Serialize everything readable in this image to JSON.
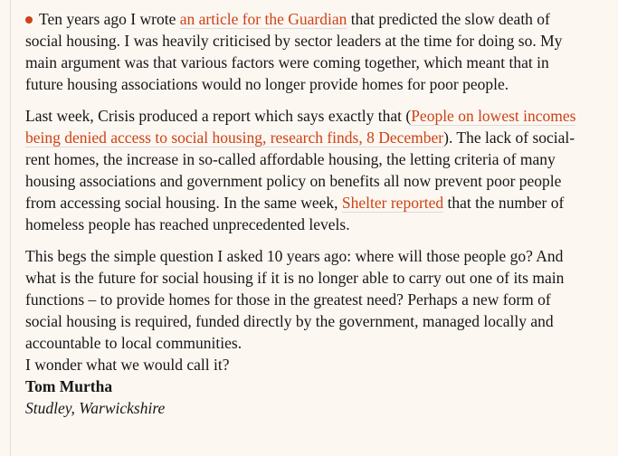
{
  "theme": {
    "background": "#fdf7f2",
    "text_color": "#161616",
    "link_color": "#cc4315",
    "bullet_color": "#cc4315",
    "link_underline_color": "#dcdcdc",
    "divider_color": "#e5dfd8"
  },
  "article": {
    "paragraphs": [
      {
        "runs": [
          {
            "type": "bullet",
            "icon": "bullet-dot-icon"
          },
          {
            "type": "text",
            "text": "Ten years ago I wrote "
          },
          {
            "type": "link",
            "text": "an article for the Guardian"
          },
          {
            "type": "text",
            "text": " that predicted the slow death of social housing. I was heavily criticised by sector leaders at the time for doing so. My main argument was that various factors were coming together, which meant that in future housing associations would no longer provide homes for poor people."
          }
        ]
      },
      {
        "runs": [
          {
            "type": "text",
            "text": "Last week, Crisis produced a report which says exactly that ("
          },
          {
            "type": "link",
            "text": "People on lowest incomes being denied access to social housing, research finds, 8 December"
          },
          {
            "type": "text",
            "text": "). The lack of social-rent homes, the increase in so-called affordable housing, the letting criteria of many housing associations and government policy on benefits all now prevent poor people from accessing social housing. In the same week, "
          },
          {
            "type": "link",
            "text": "Shelter reported"
          },
          {
            "type": "text",
            "text": " that the number of homeless people has reached unprecedented levels."
          }
        ]
      },
      {
        "runs": [
          {
            "type": "text",
            "text": "This begs the simple question I asked 10 years ago: where will those people go? And what is the future for social housing if it is no longer able to carry out one of its main functions – to provide homes for those in the greatest need? Perhaps a new form of social housing is required, funded directly by the government, managed locally and accountable to local communities."
          },
          {
            "type": "br"
          },
          {
            "type": "text",
            "text": "I wonder what we would call it?"
          },
          {
            "type": "br"
          },
          {
            "type": "author",
            "text": "Tom Murtha"
          },
          {
            "type": "br"
          },
          {
            "type": "location",
            "text": "Studley, Warwickshire"
          }
        ]
      }
    ]
  }
}
